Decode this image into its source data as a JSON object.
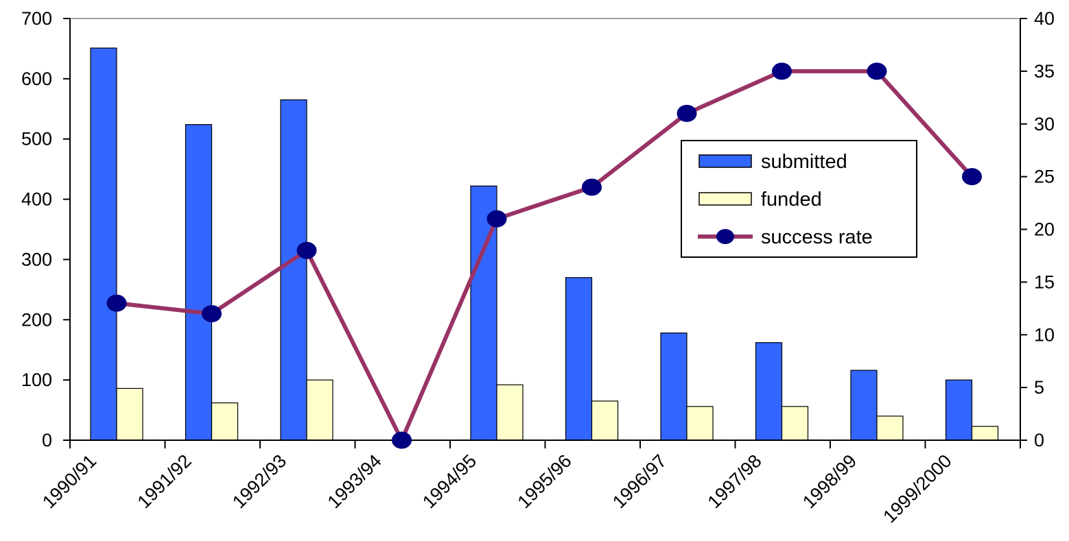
{
  "chart_data": {
    "type": "bar",
    "categories": [
      "1990/91",
      "1991/92",
      "1992/93",
      "1993/94",
      "1994/95",
      "1995/96",
      "1996/97",
      "1997/98",
      "1998/99",
      "1999/2000"
    ],
    "series": [
      {
        "name": "submitted",
        "type": "bar",
        "axis": "left",
        "color": "#3366ff",
        "values": [
          651,
          524,
          565,
          0,
          422,
          270,
          178,
          162,
          116,
          100
        ]
      },
      {
        "name": "funded",
        "type": "bar",
        "axis": "left",
        "color": "#ffffcc",
        "values": [
          86,
          62,
          100,
          0,
          92,
          65,
          56,
          56,
          40,
          23
        ]
      },
      {
        "name": "success rate",
        "type": "line",
        "axis": "right",
        "color": "#993366",
        "marker_color": "#000080",
        "values": [
          13,
          12,
          18,
          0,
          21,
          24,
          31,
          35,
          35,
          25
        ]
      }
    ],
    "y_left": {
      "ylim": [
        0,
        700
      ],
      "ticks": [
        "0",
        "100",
        "200",
        "300",
        "400",
        "500",
        "600",
        "700"
      ]
    },
    "y_right": {
      "ylim": [
        0,
        40
      ],
      "ticks": [
        "0",
        "5",
        "10",
        "15",
        "20",
        "25",
        "30",
        "35",
        "40"
      ]
    },
    "title": "",
    "xlabel": "",
    "ylabel": "",
    "grid": false,
    "legend": {
      "position": "top-right",
      "entries": [
        {
          "label": "submitted",
          "kind": "bar",
          "color": "#3366ff"
        },
        {
          "label": "funded",
          "kind": "bar",
          "color": "#ffffcc"
        },
        {
          "label": "success rate",
          "kind": "line",
          "color": "#993366"
        }
      ]
    }
  }
}
